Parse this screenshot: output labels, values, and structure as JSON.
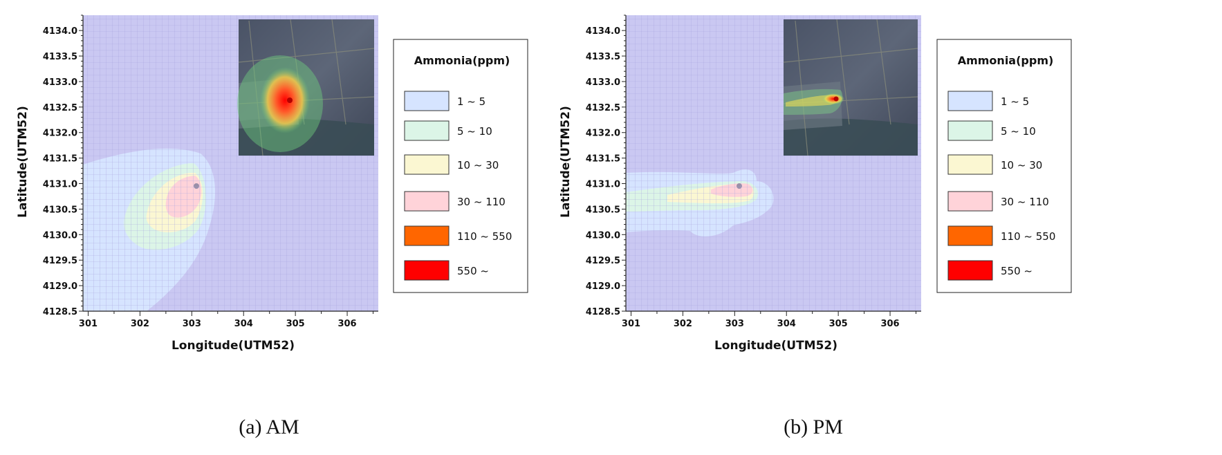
{
  "legend_title": "Ammonia(ppm)",
  "legend": [
    {
      "label": "1 ~ 5",
      "color": "#d6e4ff"
    },
    {
      "label": "5 ~ 10",
      "color": "#dcf5e7"
    },
    {
      "label": "10 ~ 30",
      "color": "#fbf7d2"
    },
    {
      "label": "30 ~ 110",
      "color": "#ffd3d9"
    },
    {
      "label": "110 ~ 550",
      "color": "#ff6600"
    },
    {
      "label": "550 ~",
      "color": "#ff0000"
    }
  ],
  "background_color": "#cac8f2",
  "chart_data": [
    {
      "type": "heatmap",
      "caption": "(a) AM",
      "xlabel": "Longitude(UTM52)",
      "ylabel": "Latitude(UTM52)",
      "xlim": [
        300.9,
        306.6
      ],
      "ylim": [
        4128.5,
        4134.3
      ],
      "xticks": [
        "301",
        "302",
        "303",
        "304",
        "305",
        "306"
      ],
      "yticks": [
        "4128.5",
        "4129.0",
        "4129.5",
        "4130.0",
        "4130.5",
        "4131.0",
        "4131.5",
        "4132.0",
        "4132.5",
        "4133.0",
        "4133.5",
        "4134.0"
      ],
      "grid": true,
      "source": {
        "x": 303.05,
        "y": 4130.95
      },
      "inset": "satellite map overlay (top-right)",
      "plume_direction": "south-west"
    },
    {
      "type": "heatmap",
      "caption": "(b) PM",
      "xlabel": "Longitude(UTM52)",
      "ylabel": "Latitude(UTM52)",
      "xlim": [
        300.9,
        306.6
      ],
      "ylim": [
        4128.5,
        4134.3
      ],
      "xticks": [
        "301",
        "302",
        "303",
        "304",
        "305",
        "306"
      ],
      "yticks": [
        "4128.5",
        "4129.0",
        "4129.5",
        "4130.0",
        "4130.5",
        "4131.0",
        "4131.5",
        "4132.0",
        "4132.5",
        "4133.0",
        "4133.5",
        "4134.0"
      ],
      "grid": true,
      "source": {
        "x": 303.05,
        "y": 4130.95
      },
      "inset": "satellite map overlay (top-right)",
      "plume_direction": "west"
    }
  ]
}
